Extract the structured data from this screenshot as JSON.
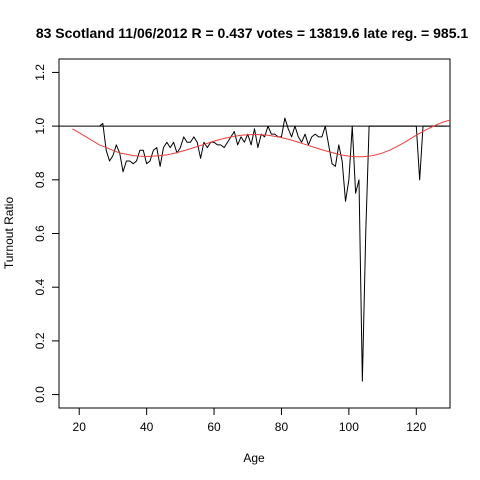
{
  "chart_data": {
    "type": "line",
    "title": "83 Scotland 11/06/2012 R = 0.437 votes = 13819.6 late reg. = 985.1",
    "xlabel": "Age",
    "ylabel": "Turnout Ratio",
    "xlim": [
      14,
      130
    ],
    "ylim": [
      -0.05,
      1.25
    ],
    "xticks": [
      20,
      40,
      60,
      80,
      100,
      120
    ],
    "yticks": [
      0.0,
      0.2,
      0.4,
      0.6,
      0.8,
      1.0,
      1.2
    ],
    "xtick_labels": [
      "20",
      "40",
      "60",
      "80",
      "100",
      "120"
    ],
    "ytick_labels": [
      "0.0",
      "0.2",
      "0.4",
      "0.6",
      "0.8",
      "1.0",
      "1.2"
    ],
    "reference_line": {
      "y": 1.0,
      "color": "#000000"
    },
    "series": [
      {
        "color": "#000000",
        "x": [
          26,
          27,
          28,
          29,
          30,
          31,
          32,
          33,
          34,
          35,
          36,
          37,
          38,
          39,
          40,
          41,
          42,
          43,
          44,
          45,
          46,
          47,
          48,
          49,
          50,
          51,
          52,
          53,
          54,
          55,
          56,
          57,
          58,
          59,
          60,
          61,
          62,
          63,
          64,
          65,
          66,
          67,
          68,
          69,
          70,
          71,
          72,
          73,
          74,
          75,
          76,
          77,
          78,
          79,
          80,
          81,
          82,
          83,
          84,
          85,
          86,
          87,
          88,
          89,
          90,
          91,
          92,
          93,
          94,
          95,
          96,
          97,
          98,
          99,
          100,
          101,
          102,
          103,
          104,
          105,
          106,
          107,
          108,
          109,
          110,
          111,
          112,
          113,
          114,
          115,
          116,
          117,
          118,
          119,
          120,
          121,
          122,
          123,
          124,
          125,
          126,
          127,
          128,
          129
        ],
        "y": [
          1.0,
          1.01,
          0.91,
          0.87,
          0.89,
          0.93,
          0.9,
          0.83,
          0.87,
          0.87,
          0.86,
          0.87,
          0.91,
          0.91,
          0.86,
          0.87,
          0.91,
          0.92,
          0.85,
          0.92,
          0.94,
          0.92,
          0.94,
          0.9,
          0.92,
          0.96,
          0.94,
          0.94,
          0.96,
          0.94,
          0.88,
          0.94,
          0.92,
          0.94,
          0.94,
          0.93,
          0.93,
          0.92,
          0.94,
          0.96,
          0.98,
          0.93,
          0.96,
          0.94,
          0.97,
          0.93,
          0.99,
          0.92,
          0.97,
          0.96,
          1.0,
          0.97,
          0.97,
          0.96,
          0.96,
          1.03,
          0.99,
          0.96,
          1.0,
          0.96,
          0.94,
          0.97,
          0.93,
          0.96,
          0.97,
          0.96,
          0.96,
          1.0,
          0.93,
          0.86,
          0.85,
          0.93,
          0.87,
          0.72,
          0.8,
          1.0,
          0.75,
          0.8,
          0.05,
          0.6,
          1.0,
          1.0,
          1.0,
          1.0,
          1.0,
          1.0,
          1.0,
          1.0,
          1.0,
          1.0,
          1.0,
          1.0,
          1.0,
          1.0,
          1.0,
          0.8,
          1.0,
          1.0,
          1.0,
          1.0,
          1.0,
          1.0,
          1.0,
          1.0
        ]
      },
      {
        "color": "#ee3b3b",
        "x": [
          18,
          20,
          22,
          24,
          26,
          28,
          30,
          32,
          34,
          36,
          38,
          40,
          42,
          44,
          46,
          48,
          50,
          52,
          54,
          56,
          58,
          60,
          62,
          64,
          66,
          68,
          70,
          72,
          74,
          76,
          78,
          80,
          82,
          84,
          86,
          88,
          90,
          92,
          94,
          96,
          98,
          100,
          102,
          104,
          106,
          108,
          110,
          112,
          114,
          116,
          118,
          120,
          122,
          124,
          126,
          128,
          130
        ],
        "y": [
          0.99,
          0.975,
          0.96,
          0.945,
          0.93,
          0.92,
          0.91,
          0.9,
          0.895,
          0.89,
          0.888,
          0.887,
          0.888,
          0.89,
          0.893,
          0.898,
          0.905,
          0.912,
          0.92,
          0.928,
          0.936,
          0.944,
          0.951,
          0.957,
          0.962,
          0.966,
          0.968,
          0.969,
          0.968,
          0.966,
          0.962,
          0.957,
          0.951,
          0.944,
          0.936,
          0.928,
          0.92,
          0.912,
          0.905,
          0.898,
          0.892,
          0.888,
          0.886,
          0.886,
          0.888,
          0.893,
          0.9,
          0.91,
          0.922,
          0.936,
          0.951,
          0.966,
          0.98,
          0.993,
          1.005,
          1.015,
          1.023
        ]
      }
    ]
  }
}
